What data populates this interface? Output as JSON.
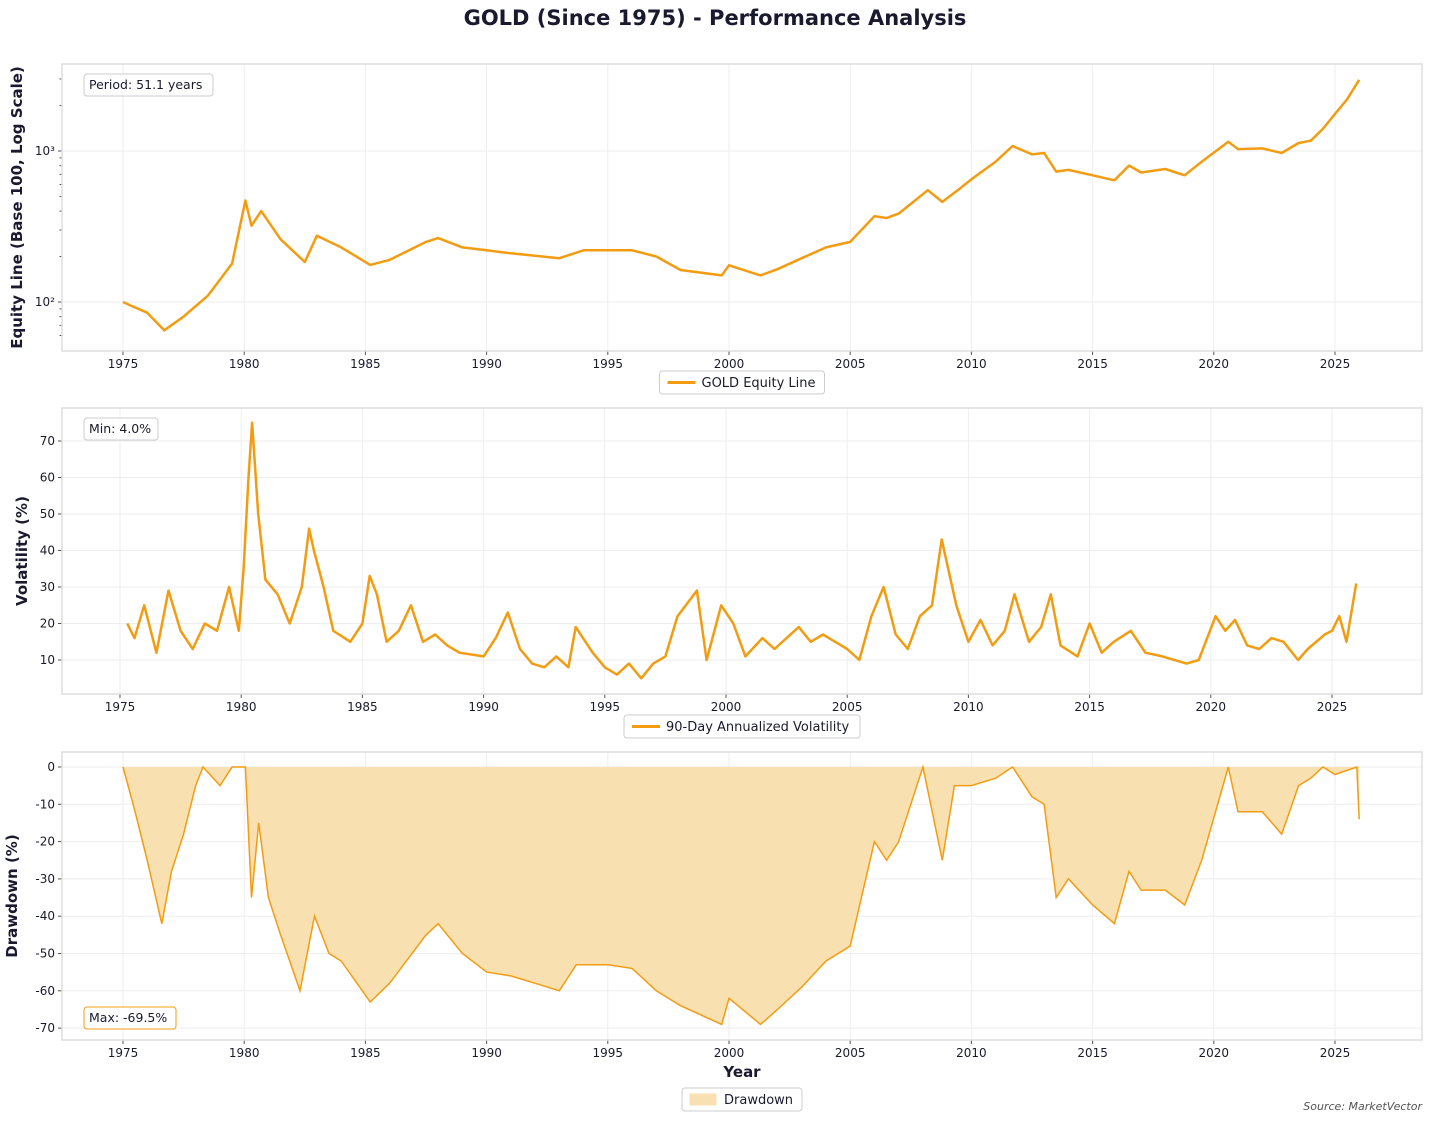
{
  "title": "GOLD (Since 1975) - Performance Analysis",
  "source": "Source: MarketVector",
  "colors": {
    "line": "#f39c12",
    "fill": "#f9e0b0",
    "grid": "#eeeeee",
    "frame": "#dddddd"
  },
  "chart_data": [
    {
      "type": "line",
      "ylabel": "Equity Line (Base 100, Log Scale)",
      "yscale": "log",
      "ylim": [
        52,
        3400
      ],
      "xlim": [
        1972.5,
        2028.2
      ],
      "yticks": [
        {
          "v": 100,
          "label": "10²"
        },
        {
          "v": 1000,
          "label": "10³"
        }
      ],
      "xticks": [
        "1975",
        "1980",
        "1985",
        "1990",
        "1995",
        "2000",
        "2005",
        "2010",
        "2015",
        "2020",
        "2025"
      ],
      "grid": true,
      "legend": "bottom-center",
      "annotation": "Period: 51.1 years",
      "series": [
        {
          "name": "GOLD Equity Line",
          "x": [
            1975,
            1975.5,
            1976,
            1976.7,
            1977.5,
            1978.5,
            1979.5,
            1980.05,
            1980.3,
            1980.7,
            1981.5,
            1982.5,
            1983,
            1984,
            1985.2,
            1986,
            1987.5,
            1988,
            1989,
            1990,
            1991,
            1993,
            1994,
            1996,
            1997,
            1998,
            1999.7,
            2000,
            2001.3,
            2002,
            2003,
            2004,
            2005,
            2006,
            2006.5,
            2007,
            2008.2,
            2008.8,
            2009.5,
            2010,
            2011,
            2011.7,
            2012.5,
            2013,
            2013.5,
            2014,
            2015,
            2015.9,
            2016.5,
            2017,
            2018,
            2018.8,
            2019.5,
            2020.6,
            2021,
            2022,
            2022.8,
            2023.5,
            2024,
            2024.5,
            2025,
            2025.5,
            2026
          ],
          "y": [
            100,
            92,
            85,
            65,
            80,
            110,
            180,
            470,
            320,
            400,
            260,
            184,
            275,
            230,
            176,
            190,
            250,
            265,
            230,
            220,
            210,
            195,
            220,
            220,
            200,
            163,
            150,
            175,
            150,
            165,
            195,
            230,
            250,
            370,
            360,
            385,
            550,
            460,
            560,
            650,
            850,
            1080,
            950,
            970,
            730,
            750,
            690,
            640,
            800,
            720,
            760,
            690,
            850,
            1150,
            1030,
            1040,
            970,
            1130,
            1170,
            1400,
            1760,
            2200,
            2960
          ]
        }
      ]
    },
    {
      "type": "line",
      "ylabel": "Volatility (%)",
      "ylim": [
        1,
        79
      ],
      "yticks": [
        10,
        20,
        30,
        40,
        50,
        60,
        70
      ],
      "xticks": [
        "1975",
        "1980",
        "1985",
        "1990",
        "1995",
        "2000",
        "2005",
        "2010",
        "2015",
        "2020",
        "2025"
      ],
      "grid": true,
      "legend": "bottom-center",
      "annotation": "Min: 4.0%",
      "series": [
        {
          "name": "90-Day Annualized Volatility",
          "x": [
            1975.3,
            1975.6,
            1976,
            1976.5,
            1977,
            1977.5,
            1978,
            1978.5,
            1979,
            1979.5,
            1979.9,
            1980.1,
            1980.3,
            1980.45,
            1980.7,
            1981,
            1981.5,
            1982,
            1982.5,
            1982.8,
            1983,
            1983.4,
            1983.8,
            1984.5,
            1985,
            1985.3,
            1985.6,
            1986,
            1986.5,
            1987,
            1987.5,
            1988,
            1988.5,
            1989,
            1990,
            1990.5,
            1991,
            1991.5,
            1992,
            1992.5,
            1993,
            1993.5,
            1993.8,
            1994.5,
            1995,
            1995.5,
            1996,
            1996.5,
            1997,
            1997.5,
            1998,
            1998.8,
            1999.2,
            1999.8,
            2000.3,
            2000.8,
            2001.5,
            2002,
            2003,
            2003.5,
            2004,
            2004.5,
            2005,
            2005.5,
            2006,
            2006.5,
            2007,
            2007.5,
            2008,
            2008.5,
            2008.9,
            2009.5,
            2010,
            2010.5,
            2011,
            2011.5,
            2011.9,
            2012.5,
            2013,
            2013.4,
            2013.8,
            2014.5,
            2015,
            2015.5,
            2016,
            2016.7,
            2017.3,
            2018,
            2019,
            2019.5,
            2020.2,
            2020.6,
            2021,
            2021.5,
            2022,
            2022.5,
            2023,
            2023.6,
            2024,
            2024.7,
            2025,
            2025.3,
            2025.6,
            2026
          ],
          "y": [
            20,
            16,
            25,
            12,
            29,
            18,
            13,
            20,
            18,
            30,
            18,
            35,
            60,
            75,
            50,
            32,
            28,
            20,
            30,
            46,
            40,
            30,
            18,
            15,
            20,
            33,
            28,
            15,
            18,
            25,
            15,
            17,
            14,
            12,
            11,
            16,
            23,
            13,
            9,
            8,
            11,
            8,
            19,
            12,
            8,
            6,
            9,
            5,
            9,
            11,
            22,
            29,
            10,
            25,
            20,
            11,
            16,
            13,
            19,
            15,
            17,
            15,
            13,
            10,
            22,
            30,
            17,
            13,
            22,
            25,
            43,
            25,
            15,
            21,
            14,
            18,
            28,
            15,
            19,
            28,
            14,
            11,
            20,
            12,
            15,
            18,
            12,
            11,
            9,
            10,
            22,
            18,
            21,
            14,
            13,
            16,
            15,
            10,
            13,
            17,
            18,
            22,
            15,
            31
          ]
        }
      ]
    },
    {
      "type": "area",
      "ylabel": "Drawdown (%)",
      "xlabel": "Year",
      "ylim": [
        -73,
        1
      ],
      "yticks": [
        0,
        -10,
        -20,
        -30,
        -40,
        -50,
        -60,
        -70
      ],
      "xticks": [
        "1975",
        "1980",
        "1985",
        "1990",
        "1995",
        "2000",
        "2005",
        "2010",
        "2015",
        "2020",
        "2025"
      ],
      "grid": true,
      "legend": "bottom-center",
      "annotation": "Max: -69.5%",
      "series": [
        {
          "name": "Drawdown",
          "x": [
            1975,
            1975.5,
            1976,
            1976.6,
            1977,
            1977.5,
            1978,
            1978.3,
            1979,
            1979.5,
            1980.05,
            1980.3,
            1980.6,
            1981,
            1981.5,
            1982.3,
            1982.9,
            1983.5,
            1984,
            1985.2,
            1986,
            1987.5,
            1988,
            1989,
            1990,
            1991,
            1992,
            1993,
            1993.7,
            1995,
            1996,
            1997,
            1998,
            1999.7,
            2000,
            2001.3,
            2002,
            2003,
            2004,
            2005,
            2006,
            2006.5,
            2007,
            2007.5,
            2008,
            2008.8,
            2009.3,
            2010,
            2011,
            2011.7,
            2012.5,
            2013,
            2013.5,
            2014,
            2015,
            2015.9,
            2016.5,
            2017,
            2018,
            2018.8,
            2019.5,
            2020.6,
            2021,
            2022,
            2022.8,
            2023.5,
            2024,
            2024.5,
            2025,
            2025.9,
            2026
          ],
          "y": [
            0,
            -12,
            -25,
            -42,
            -28,
            -18,
            -5,
            0,
            -5,
            0,
            0,
            -35,
            -15,
            -35,
            -45,
            -60,
            -40,
            -50,
            -52,
            -63,
            -58,
            -45,
            -42,
            -50,
            -55,
            -56,
            -58,
            -60,
            -53,
            -53,
            -54,
            -60,
            -64,
            -69,
            -62,
            -69,
            -65,
            -59,
            -52,
            -48,
            -20,
            -25,
            -20,
            -10,
            0,
            -25,
            -5,
            -5,
            -3,
            0,
            -8,
            -10,
            -35,
            -30,
            -37,
            -42,
            -28,
            -33,
            -33,
            -37,
            -25,
            0,
            -12,
            -12,
            -18,
            -5,
            -3,
            0,
            -2,
            0,
            -14
          ]
        }
      ]
    }
  ]
}
